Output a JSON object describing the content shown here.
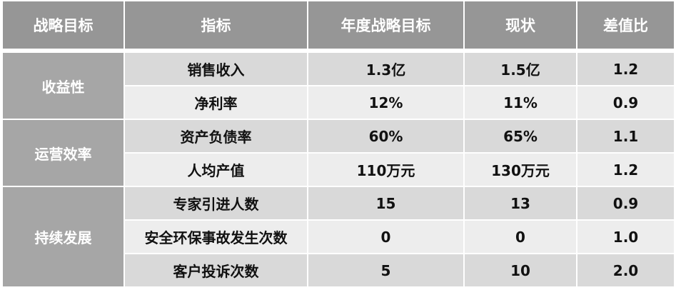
{
  "headers": [
    "战略目标",
    "指标",
    "年度战略目标",
    "现状",
    "差值比"
  ],
  "groups": [
    {
      "name": "收益性",
      "rows": [
        [
          "销售收入",
          "1.3亿",
          "1.5亿",
          "1.2"
        ],
        [
          "净利率",
          "12%",
          "11%",
          "0.9"
        ]
      ]
    },
    {
      "name": "运营效率",
      "rows": [
        [
          "资产负债率",
          "60%",
          "65%",
          "1.1"
        ],
        [
          "人均产值",
          "110万元",
          "130万元",
          "1.2"
        ]
      ]
    },
    {
      "name": "持续发展",
      "rows": [
        [
          "专家引进人数",
          "15",
          "13",
          "0.9"
        ],
        [
          "安全环保事故发生次数",
          "0",
          "0",
          "1.0"
        ],
        [
          "客户投诉次数",
          "5",
          "10",
          "2.0"
        ]
      ]
    }
  ]
}
